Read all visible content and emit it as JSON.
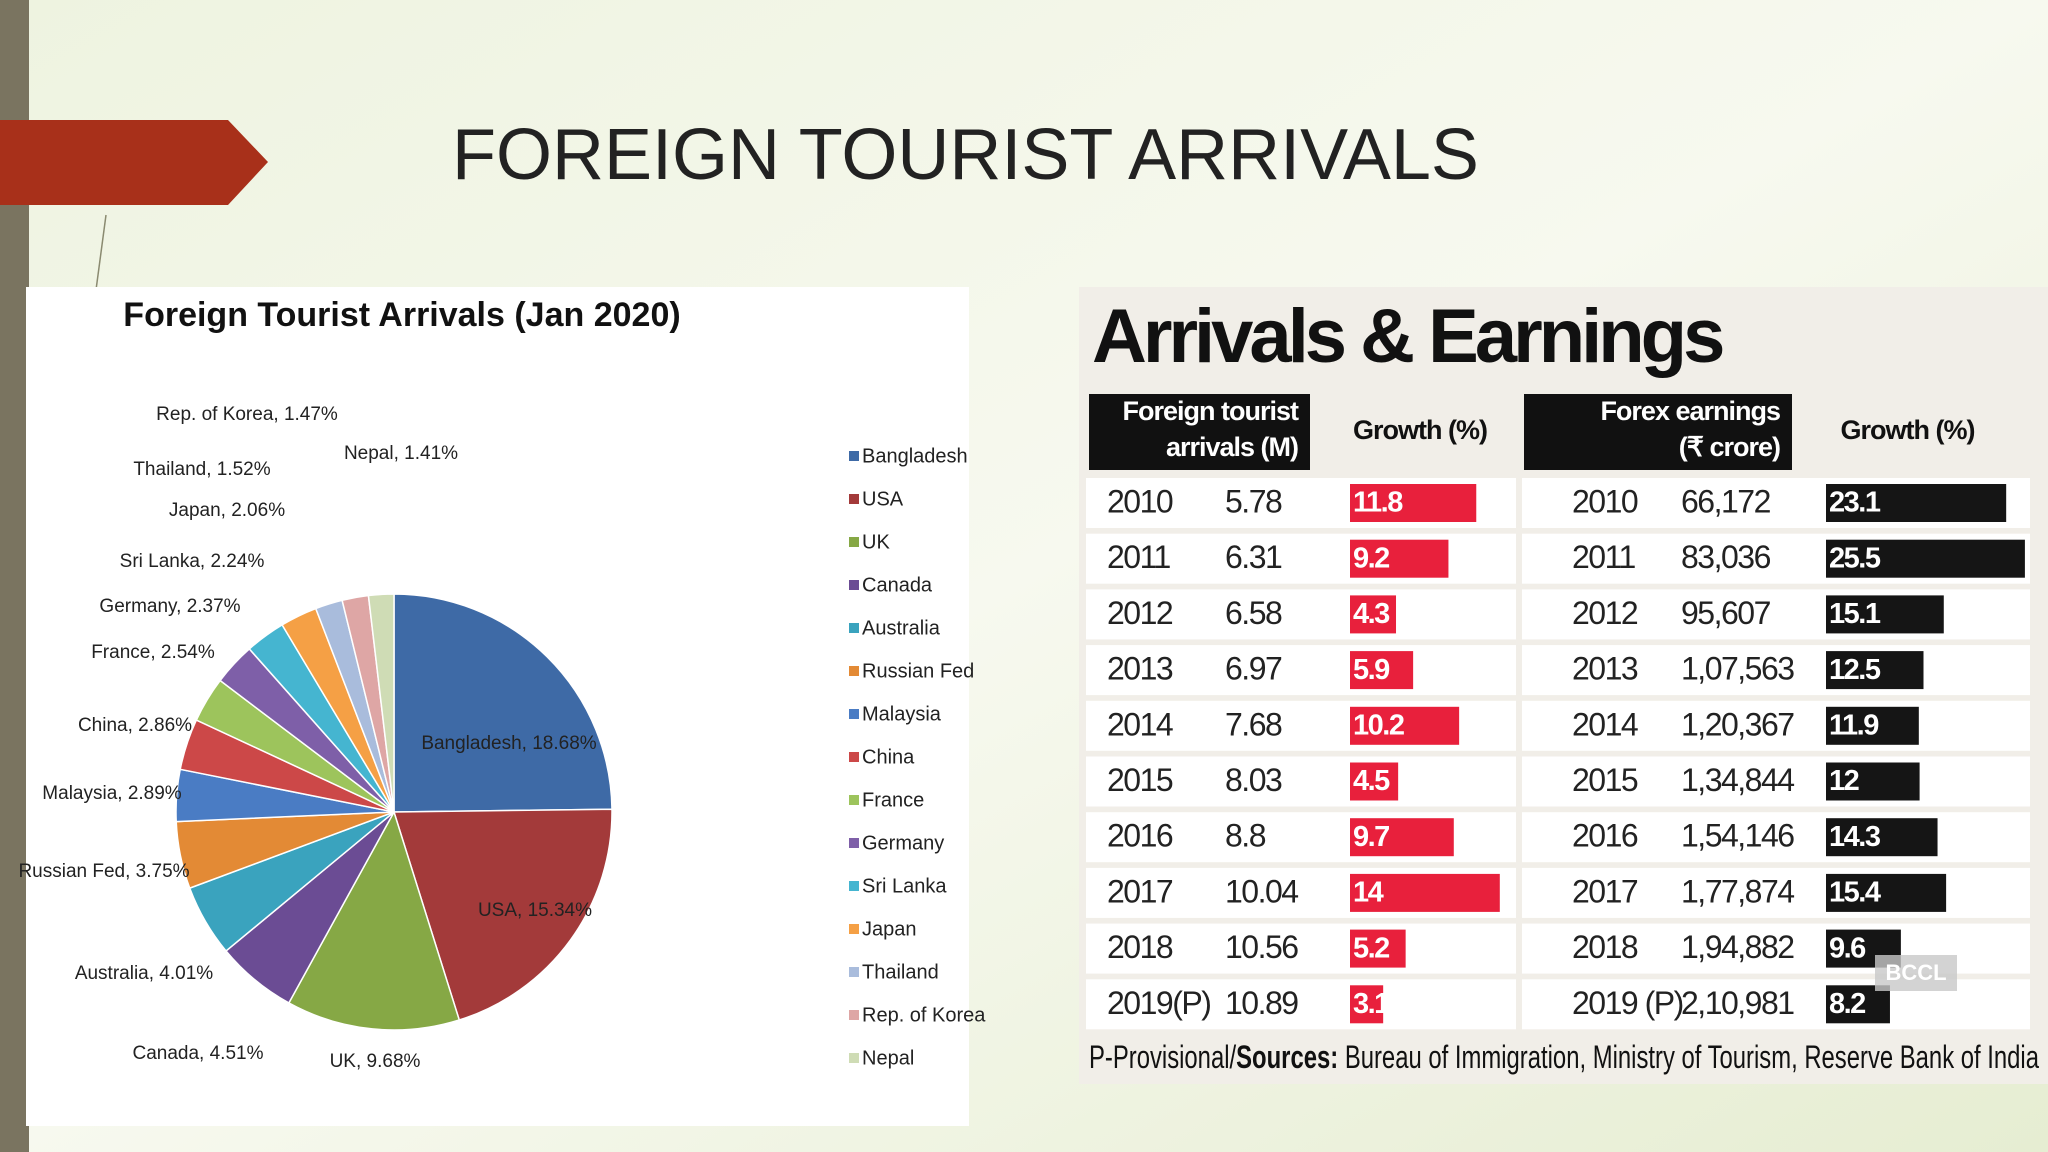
{
  "slide_title": "FOREIGN TOURIST ARRIVALS",
  "chart_data": {
    "type": "pie",
    "title": "Foreign Tourist Arrivals (Jan 2020)",
    "categories": [
      "Bangladesh",
      "USA",
      "UK",
      "Canada",
      "Australia",
      "Russian Fed",
      "Malaysia",
      "China",
      "France",
      "Germany",
      "Sri Lanka",
      "Japan",
      "Thailand",
      "Rep. of Korea",
      "Nepal"
    ],
    "values": [
      18.68,
      15.34,
      9.68,
      4.51,
      4.01,
      3.75,
      2.89,
      2.86,
      2.54,
      2.37,
      2.24,
      2.06,
      1.52,
      1.47,
      1.41
    ],
    "value_labels": [
      "Bangladesh, 18.68%",
      "USA, 15.34%",
      "UK, 9.68%",
      "Canada, 4.51%",
      "Australia, 4.01%",
      "Russian Fed, 3.75%",
      "Malaysia, 2.89%",
      "China, 2.86%",
      "France, 2.54%",
      "Germany, 2.37%",
      "Sri Lanka, 2.24%",
      "Japan, 2.06%",
      "Thailand, 1.52%",
      "Rep. of Korea, 1.47%",
      "Nepal, 1.41%"
    ],
    "colors": [
      "#3e6aa6",
      "#a33a3a",
      "#86a845",
      "#6b4c94",
      "#3aa3be",
      "#e38a35",
      "#4a7cc4",
      "#cc4848",
      "#9dc45c",
      "#7e5fa8",
      "#45b5d0",
      "#f5a045",
      "#a9bcdc",
      "#dea6a5",
      "#cfdcb5"
    ],
    "legend": "right"
  },
  "table": {
    "title": "Arrivals & Earnings",
    "headers": [
      [
        "Foreign tourist",
        "arrivals (M)"
      ],
      "Growth (%)",
      [
        "Forex earnings",
        "(₹ crore)"
      ],
      "Growth (%)"
    ],
    "rows": [
      [
        2010,
        5.78,
        11.8,
        2010,
        "66,172",
        23.1
      ],
      [
        2011,
        6.31,
        9.2,
        2011,
        "83,036",
        25.5
      ],
      [
        2012,
        6.58,
        4.3,
        2012,
        "95,607",
        15.1
      ],
      [
        2013,
        6.97,
        5.9,
        2013,
        "1,07,563",
        12.5
      ],
      [
        2014,
        7.68,
        10.2,
        2014,
        "1,20,367",
        11.9
      ],
      [
        2015,
        8.03,
        4.5,
        2015,
        "1,34,844",
        12
      ],
      [
        2016,
        8.8,
        9.7,
        2016,
        "1,54,146",
        14.3
      ],
      [
        2017,
        10.04,
        14,
        2017,
        "1,77,874",
        15.4
      ],
      [
        2018,
        10.56,
        5.2,
        2018,
        "1,94,882",
        9.6
      ],
      [
        "2019(P)",
        10.89,
        3.1,
        "2019 (P)",
        "2,10,981",
        8.2
      ]
    ],
    "bar_colors": [
      "#e8203c",
      "#151515"
    ],
    "watermark": "BCCL",
    "footnote": [
      "P-Provisional/",
      "Sources:",
      " Bureau of Immigration, Ministry of Tourism, Reserve Bank of India"
    ]
  }
}
